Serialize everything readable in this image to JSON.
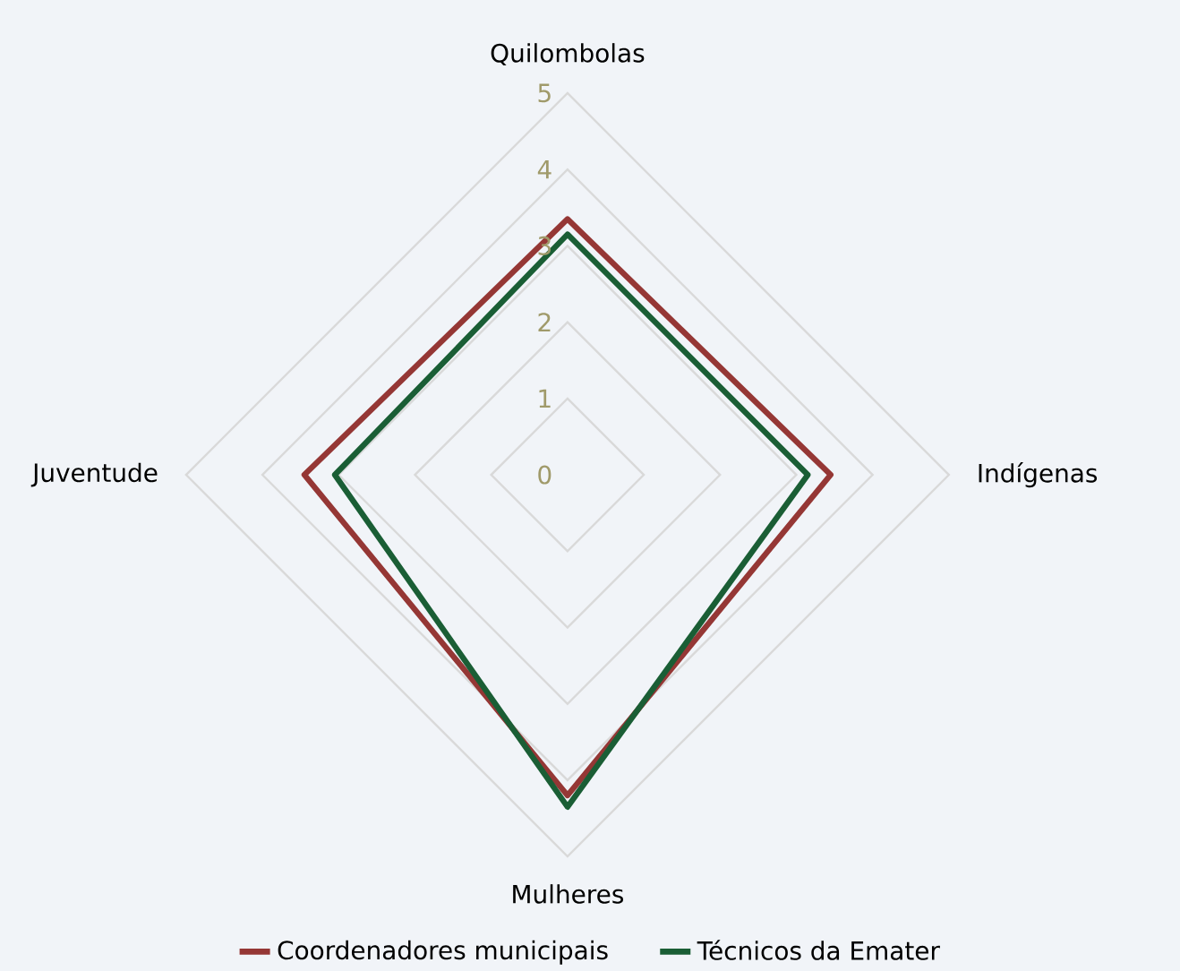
{
  "chart_data": {
    "type": "radar",
    "categories": [
      "Quilombolas",
      "Indígenas",
      "Mulheres",
      "Juventude"
    ],
    "series": [
      {
        "name": "Coordenadores municipais",
        "color": "#953735",
        "values": [
          3.35,
          3.45,
          4.2,
          3.45
        ]
      },
      {
        "name": "Técnicos da Emater",
        "color": "#1a5e35",
        "values": [
          3.15,
          3.15,
          4.35,
          3.05
        ]
      }
    ],
    "ylim": [
      0,
      5
    ],
    "yticks": [
      0,
      1,
      2,
      3,
      4,
      5
    ],
    "grid": true,
    "legend": "bottom"
  }
}
